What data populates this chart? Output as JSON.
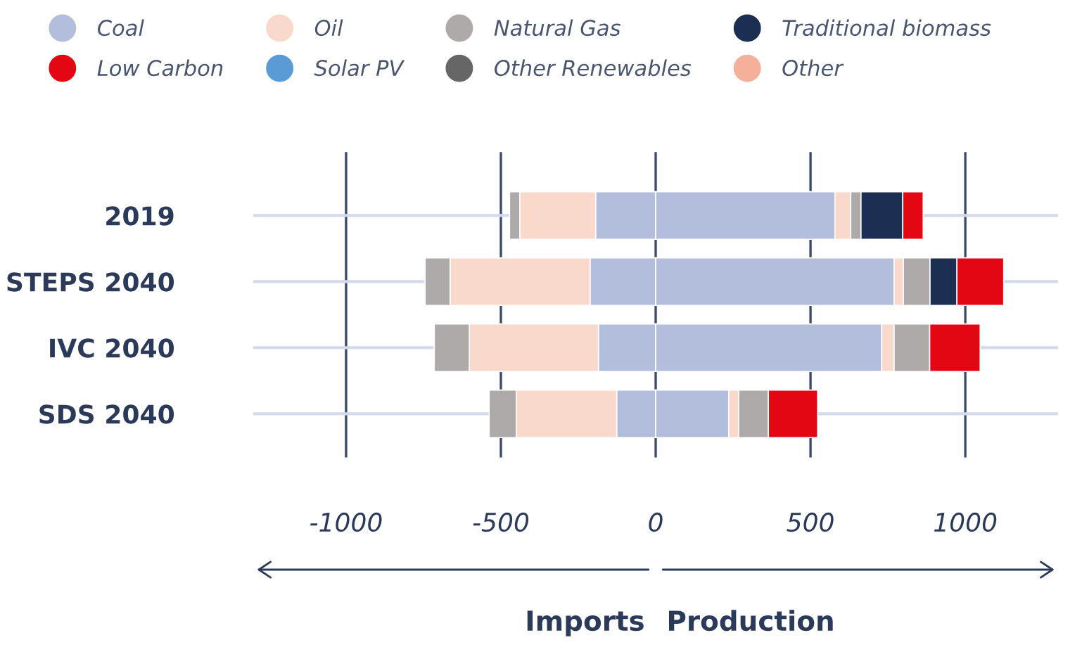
{
  "chart_data": {
    "type": "bar",
    "orientation": "horizontal",
    "stacked": true,
    "categories": [
      "2019",
      "STEPS 2040",
      "IVC 2040",
      "SDS 2040"
    ],
    "series": [
      {
        "color": "#b3bedd",
        "values": [
          -194,
          -212,
          -185,
          -126
        ]
      },
      {
        "color": "#f9d9cb",
        "values": [
          -245,
          -452,
          -417,
          -324
        ]
      },
      {
        "color": "#adaaa9",
        "values": [
          -33,
          -81,
          -113,
          -88
        ]
      },
      {
        "name": "Coal",
        "color": "#b3bedd",
        "values": [
          579,
          770,
          730,
          236
        ]
      },
      {
        "name": "Oil",
        "color": "#f9d9cb",
        "values": [
          51,
          30,
          40,
          32
        ]
      },
      {
        "name": "Natural Gas",
        "color": "#adaaa9",
        "values": [
          33,
          86,
          115,
          96
        ]
      },
      {
        "name": "Traditional biomass",
        "color": "#1c2e52",
        "values": [
          135,
          87,
          null,
          null
        ]
      },
      {
        "name": "Low Carbon",
        "color": "#e30613",
        "values": [
          66,
          151,
          163,
          159
        ]
      },
      {
        "name": "Solar PV",
        "color": "#5b9bd5",
        "values": [
          null,
          null,
          null,
          null
        ]
      },
      {
        "name": "Other Renewables",
        "color": "#666666",
        "values": [
          null,
          null,
          null,
          null
        ]
      },
      {
        "name": "Other",
        "color": "#f4b09a",
        "values": [
          null,
          null,
          null,
          null
        ]
      }
    ],
    "xlim": [
      -1300,
      1300
    ],
    "xticks": [
      -1000,
      -500,
      0,
      500,
      1000
    ],
    "grid": true,
    "legend": "top left",
    "annotations": [
      "Imports",
      "Production"
    ]
  }
}
